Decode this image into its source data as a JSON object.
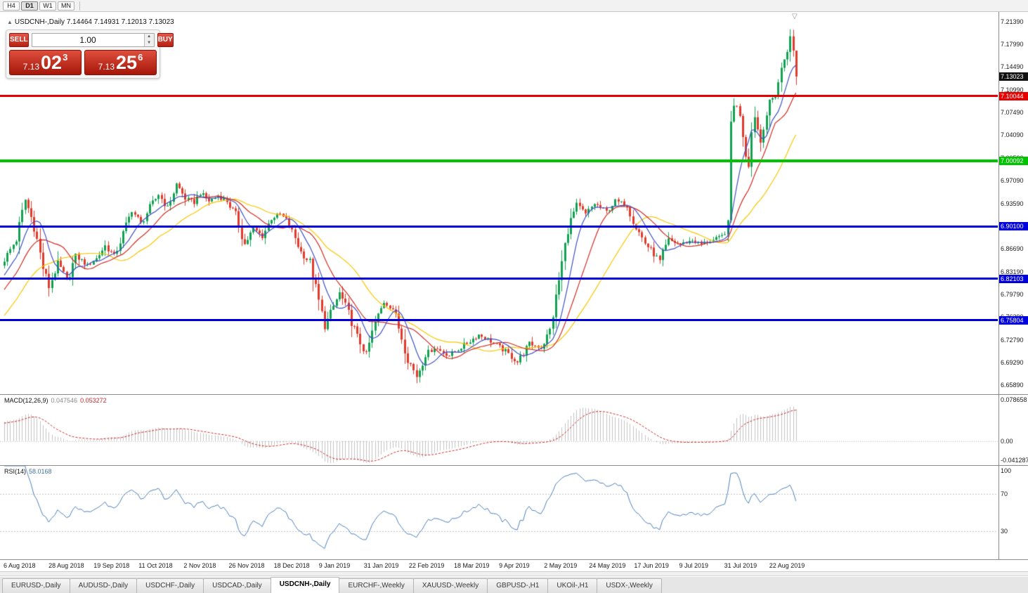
{
  "toolbar": {
    "timeframes": [
      {
        "label": "H4",
        "active": false
      },
      {
        "label": "D1",
        "active": true
      },
      {
        "label": "W1",
        "active": false
      },
      {
        "label": "MN",
        "active": false
      }
    ]
  },
  "chart_header": {
    "collapse_icon": "▲",
    "text": "USDCNH-,Daily  7.14464 7.14931 7.12013 7.13023"
  },
  "trade_panel": {
    "sell_label": "SELL",
    "buy_label": "BUY",
    "volume": "1.00",
    "sell_price": {
      "prefix": "7.13",
      "big": "02",
      "sup": "3"
    },
    "buy_price": {
      "prefix": "7.13",
      "big": "25",
      "sup": "6"
    }
  },
  "tabs": {
    "items": [
      {
        "label": "EURUSD-,Daily",
        "active": false
      },
      {
        "label": "AUDUSD-,Daily",
        "active": false
      },
      {
        "label": "USDCHF-,Daily",
        "active": false
      },
      {
        "label": "USDCAD-,Daily",
        "active": false
      },
      {
        "label": "USDCNH-,Daily",
        "active": true
      },
      {
        "label": "EURCHF-,Weekly",
        "active": false
      },
      {
        "label": "XAUUSD-,Weekly",
        "active": false
      },
      {
        "label": "GBPUSD-,H1",
        "active": false
      },
      {
        "label": "UKOil-,H1",
        "active": false
      },
      {
        "label": "USDX-,Weekly",
        "active": false
      }
    ]
  },
  "chart_data": {
    "type": "candlestick",
    "symbol": "USDCNH-",
    "timeframe": "Daily",
    "ohlc": {
      "open": 7.14464,
      "high": 7.14931,
      "low": 7.12013,
      "close": 7.13023
    },
    "ylim": [
      6.645,
      7.2289
    ],
    "candle_count": 268,
    "pre_ramp": {
      "from": 6.67,
      "bars": 30
    },
    "close_path": [
      [
        0,
        6.85
      ],
      [
        4,
        6.882
      ],
      [
        7,
        6.942
      ],
      [
        10,
        6.902
      ],
      [
        13,
        6.838
      ],
      [
        15,
        6.808
      ],
      [
        18,
        6.846
      ],
      [
        21,
        6.818
      ],
      [
        24,
        6.856
      ],
      [
        28,
        6.842
      ],
      [
        31,
        6.852
      ],
      [
        34,
        6.872
      ],
      [
        37,
        6.856
      ],
      [
        40,
        6.89
      ],
      [
        43,
        6.926
      ],
      [
        46,
        6.906
      ],
      [
        49,
        6.93
      ],
      [
        52,
        6.95
      ],
      [
        55,
        6.93
      ],
      [
        58,
        6.966
      ],
      [
        61,
        6.944
      ],
      [
        64,
        6.938
      ],
      [
        66,
        6.952
      ],
      [
        69,
        6.94
      ],
      [
        72,
        6.948
      ],
      [
        75,
        6.94
      ],
      [
        78,
        6.918
      ],
      [
        81,
        6.874
      ],
      [
        84,
        6.898
      ],
      [
        87,
        6.886
      ],
      [
        90,
        6.914
      ],
      [
        93,
        6.92
      ],
      [
        95,
        6.91
      ],
      [
        98,
        6.884
      ],
      [
        100,
        6.862
      ],
      [
        103,
        6.846
      ],
      [
        105,
        6.806
      ],
      [
        108,
        6.748
      ],
      [
        110,
        6.768
      ],
      [
        113,
        6.8
      ],
      [
        116,
        6.768
      ],
      [
        119,
        6.732
      ],
      [
        122,
        6.706
      ],
      [
        125,
        6.754
      ],
      [
        128,
        6.786
      ],
      [
        131,
        6.776
      ],
      [
        134,
        6.732
      ],
      [
        136,
        6.7
      ],
      [
        139,
        6.672
      ],
      [
        142,
        6.706
      ],
      [
        145,
        6.716
      ],
      [
        150,
        6.704
      ],
      [
        155,
        6.72
      ],
      [
        160,
        6.736
      ],
      [
        164,
        6.726
      ],
      [
        169,
        6.71
      ],
      [
        173,
        6.694
      ],
      [
        177,
        6.722
      ],
      [
        181,
        6.716
      ],
      [
        184,
        6.742
      ],
      [
        186,
        6.792
      ],
      [
        188,
        6.846
      ],
      [
        190,
        6.898
      ],
      [
        193,
        6.934
      ],
      [
        196,
        6.92
      ],
      [
        199,
        6.936
      ],
      [
        203,
        6.924
      ],
      [
        206,
        6.94
      ],
      [
        210,
        6.934
      ],
      [
        213,
        6.9
      ],
      [
        216,
        6.876
      ],
      [
        221,
        6.848
      ],
      [
        224,
        6.88
      ],
      [
        228,
        6.874
      ],
      [
        232,
        6.88
      ],
      [
        235,
        6.874
      ],
      [
        239,
        6.88
      ],
      [
        242,
        6.886
      ],
      [
        244,
        6.902
      ],
      [
        245,
        7.06
      ],
      [
        246,
        7.09
      ],
      [
        248,
        7.075
      ],
      [
        250,
        7.012
      ],
      [
        251,
        7.0
      ],
      [
        252,
        7.045
      ],
      [
        253,
        7.07
      ],
      [
        255,
        7.03
      ],
      [
        256,
        7.058
      ],
      [
        258,
        7.088
      ],
      [
        260,
        7.105
      ],
      [
        262,
        7.14
      ],
      [
        263,
        7.158
      ],
      [
        265,
        7.19
      ],
      [
        266,
        7.168
      ],
      [
        267,
        7.13023
      ]
    ],
    "colors": {
      "up": "#12a152",
      "down": "#e23a2b",
      "ma_fast": "#3f51c1",
      "ma_mid": "#cf2b20",
      "ma_slow": "#f7c600",
      "macd_hist": "#c2c2c2",
      "macd_signal": "#c62828",
      "rsi_line": "#4b7fb5"
    },
    "ma_periods": {
      "fast": 8,
      "mid": 16,
      "slow": 30
    },
    "hlines": [
      {
        "price": 7.10044,
        "label": "7.10044",
        "color": "#e60000",
        "width": 3
      },
      {
        "price": 7.00092,
        "label": "7.00092",
        "color": "#00c400",
        "width": 4
      },
      {
        "price": 6.901,
        "label": "6.90100",
        "color": "#0000dd",
        "width": 3
      },
      {
        "price": 6.82103,
        "label": "6.82103",
        "color": "#0000dd",
        "width": 3
      },
      {
        "price": 6.75804,
        "label": "6.75804",
        "color": "#0000dd",
        "width": 3
      }
    ],
    "current_price": {
      "value": 7.13023,
      "label": "7.13023",
      "bg": "#111111"
    },
    "y_ticks": [
      "7.21390",
      "7.17990",
      "7.14490",
      "7.10990",
      "7.07490",
      "7.04090",
      "7.00590",
      "6.97090",
      "6.93590",
      "6.90090",
      "6.86690",
      "6.83190",
      "6.79790",
      "6.76290",
      "6.72790",
      "6.69290",
      "6.65890"
    ],
    "x_dates": [
      "6 Aug 2018",
      "28 Aug 2018",
      "19 Sep 2018",
      "11 Oct 2018",
      "2 Nov 2018",
      "26 Nov 2018",
      "18 Dec 2018",
      "9 Jan 2019",
      "31 Jan 2019",
      "22 Feb 2019",
      "18 Mar 2019",
      "9 Apr 2019",
      "2 May 2019",
      "24 May 2019",
      "17 Jun 2019",
      "9 Jul 2019",
      "31 Jul 2019",
      "22 Aug 2019"
    ],
    "macd": {
      "label": "MACD(12,26,9)",
      "value_main": "0.047546",
      "value_signal": "0.053272",
      "max": 0.078658,
      "min": -0.041287,
      "axis_max": "0.078658",
      "axis_zero": "0.00",
      "axis_min": "-0.041287"
    },
    "rsi": {
      "label": "RSI(14)",
      "value": "58.0168",
      "levels": [
        70,
        30
      ],
      "axis_top": "100",
      "axis_70": "70",
      "axis_30": "30"
    },
    "shift_marker": "▽"
  }
}
